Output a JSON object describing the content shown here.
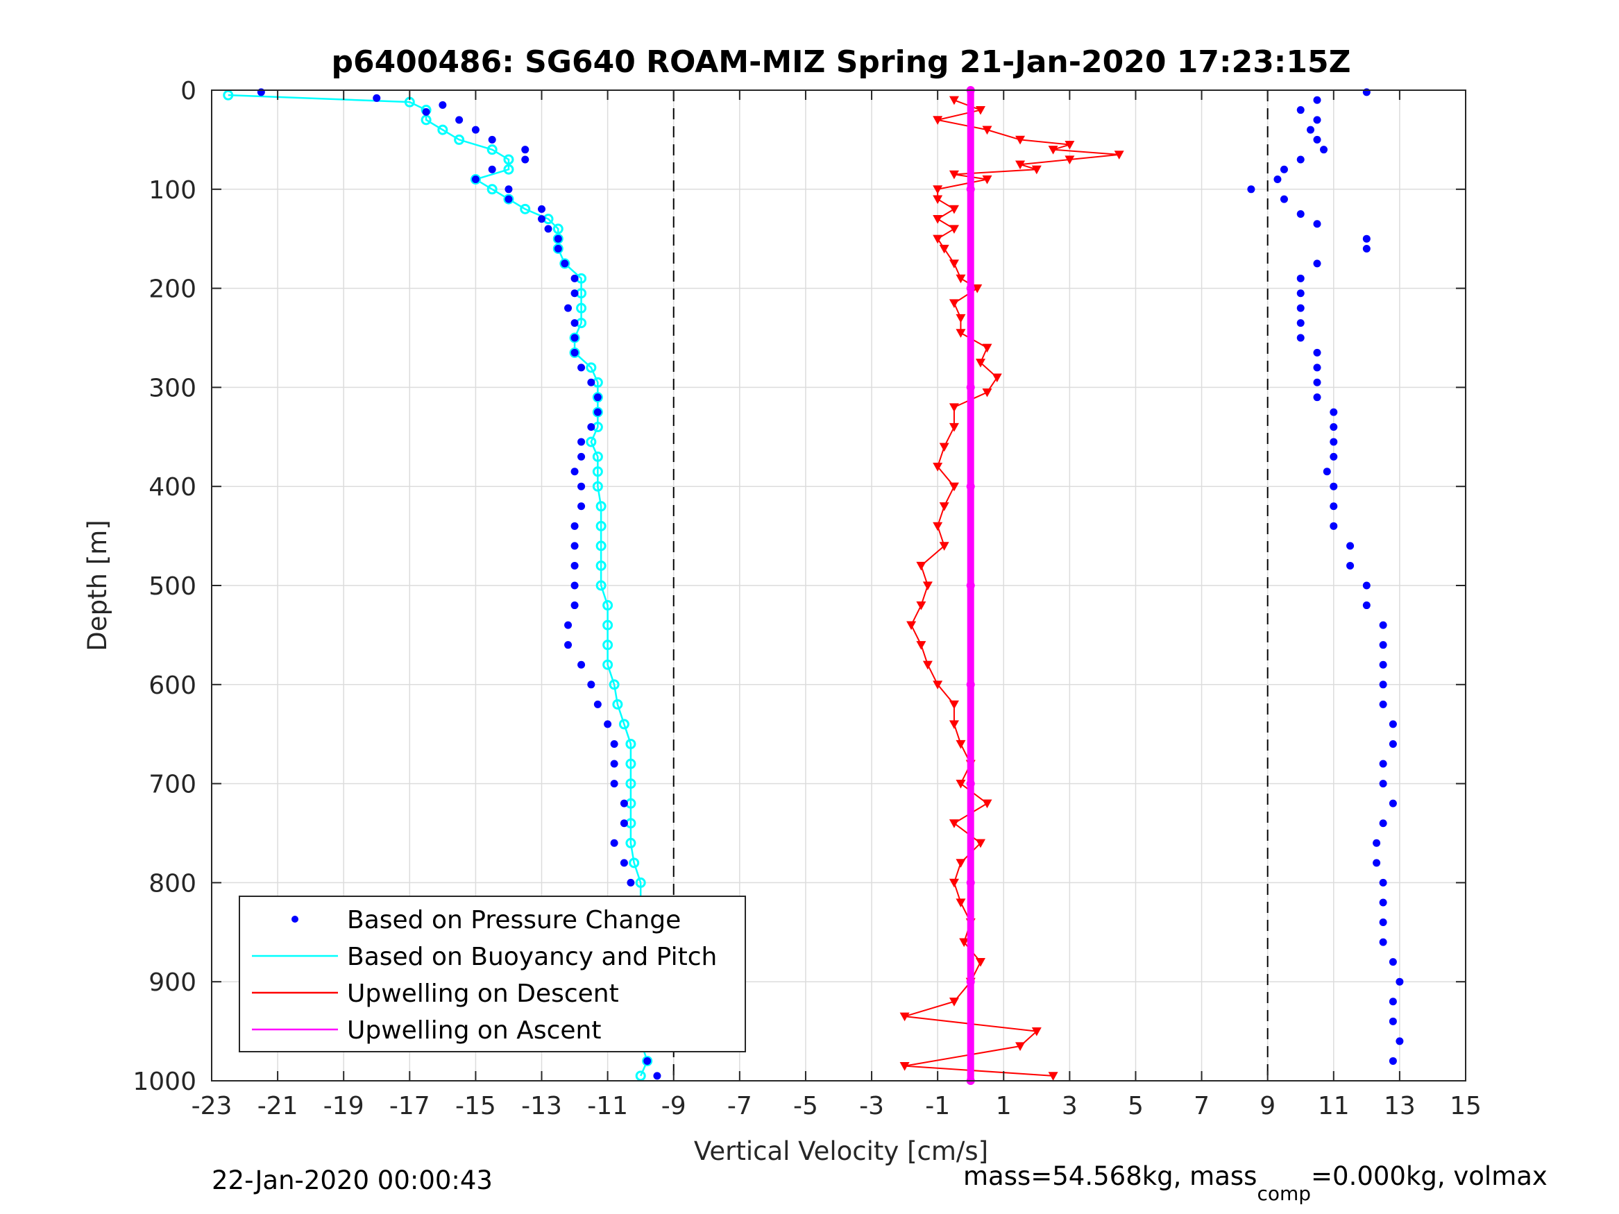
{
  "chart_data": {
    "type": "scatter",
    "title": "p6400486: SG640 ROAM-MIZ Spring 21-Jan-2020 17:23:15Z",
    "xlabel": "Vertical Velocity [cm/s]",
    "ylabel": "Depth [m]",
    "xlim": [
      -23,
      15
    ],
    "ylim": [
      0,
      1000
    ],
    "y_reversed": true,
    "grid": true,
    "x_ticks": [
      "-23",
      "-21",
      "-19",
      "-17",
      "-15",
      "-13",
      "-11",
      "-9",
      "-7",
      "-5",
      "-3",
      "-1",
      "1",
      "3",
      "5",
      "7",
      "9",
      "11",
      "13",
      "15"
    ],
    "y_ticks": [
      "0",
      "100",
      "200",
      "300",
      "400",
      "500",
      "600",
      "700",
      "800",
      "900",
      "1000"
    ],
    "threshold_lines_x": [
      -9,
      9
    ],
    "legend_position": "lower-left",
    "colors": {
      "pressure": "#0000ff",
      "buoyancy": "#00ffff",
      "upwelling_descent": "#ff0000",
      "upwelling_ascent": "#ff00ff"
    },
    "series": [
      {
        "name": "Based on Pressure Change",
        "style": "dot",
        "descent_depth": [
          2,
          8,
          15,
          22,
          30,
          40,
          50,
          60,
          70,
          80,
          90,
          100,
          110,
          120,
          130,
          140,
          150,
          160,
          175,
          190,
          205,
          220,
          235,
          250,
          265,
          280,
          295,
          310,
          325,
          340,
          355,
          370,
          385,
          400,
          420,
          440,
          460,
          480,
          500,
          520,
          540,
          560,
          580,
          600,
          620,
          640,
          660,
          680,
          700,
          720,
          740,
          760,
          780,
          800,
          820,
          840,
          860,
          880,
          900,
          920,
          940,
          960,
          980,
          995
        ],
        "descent_velocity": [
          -21.5,
          -18,
          -16,
          -16.5,
          -15.5,
          -15,
          -14.5,
          -13.5,
          -13.5,
          -14.5,
          -15,
          -14,
          -14,
          -13,
          -13,
          -12.8,
          -12.5,
          -12.5,
          -12.3,
          -12,
          -12,
          -12.2,
          -12,
          -12,
          -12,
          -11.8,
          -11.5,
          -11.3,
          -11.3,
          -11.5,
          -11.8,
          -11.8,
          -12,
          -11.8,
          -11.8,
          -12,
          -12,
          -12,
          -12,
          -12,
          -12.2,
          -12.2,
          -11.8,
          -11.5,
          -11.3,
          -11,
          -10.8,
          -10.8,
          -10.8,
          -10.5,
          -10.5,
          -10.8,
          -10.5,
          -10.3,
          -10.3,
          -10.1,
          -10,
          -10,
          -10,
          -10.1,
          -10,
          -10,
          -9.8,
          -9.5
        ],
        "ascent_depth": [
          2,
          10,
          20,
          30,
          40,
          50,
          60,
          70,
          80,
          90,
          100,
          110,
          125,
          135,
          150,
          160,
          175,
          190,
          205,
          220,
          235,
          250,
          265,
          280,
          295,
          310,
          325,
          340,
          355,
          370,
          385,
          400,
          420,
          440,
          460,
          480,
          500,
          520,
          540,
          560,
          580,
          600,
          620,
          640,
          660,
          680,
          700,
          720,
          740,
          760,
          780,
          800,
          820,
          840,
          860,
          880,
          900,
          920,
          940,
          960,
          980
        ],
        "ascent_velocity": [
          12,
          10.5,
          10,
          10.5,
          10.3,
          10.5,
          10.7,
          10,
          9.5,
          9.3,
          8.5,
          9.5,
          10,
          10.5,
          12,
          12,
          10.5,
          10,
          10,
          10,
          10,
          10,
          10.5,
          10.5,
          10.5,
          10.5,
          11,
          11,
          11,
          11,
          10.8,
          11,
          11,
          11,
          11.5,
          11.5,
          12,
          12,
          12.5,
          12.5,
          12.5,
          12.5,
          12.5,
          12.8,
          12.8,
          12.5,
          12.5,
          12.8,
          12.5,
          12.3,
          12.3,
          12.5,
          12.5,
          12.5,
          12.5,
          12.8,
          13,
          12.8,
          12.8,
          13,
          12.8
        ]
      },
      {
        "name": "Based on Buoyancy and Pitch",
        "style": "line-with-open-circles",
        "depth": [
          5,
          12,
          20,
          30,
          40,
          50,
          60,
          70,
          80,
          90,
          100,
          110,
          120,
          130,
          140,
          150,
          160,
          175,
          190,
          205,
          220,
          235,
          250,
          265,
          280,
          295,
          310,
          325,
          340,
          355,
          370,
          385,
          400,
          420,
          440,
          460,
          480,
          500,
          520,
          540,
          560,
          580,
          600,
          620,
          640,
          660,
          680,
          700,
          720,
          740,
          760,
          780,
          800,
          820,
          840,
          860,
          880,
          900,
          920,
          940,
          960,
          980,
          995
        ],
        "velocity": [
          -22.5,
          -17,
          -16.5,
          -16.5,
          -16,
          -15.5,
          -14.5,
          -14,
          -14,
          -15,
          -14.5,
          -14,
          -13.5,
          -12.8,
          -12.5,
          -12.5,
          -12.5,
          -12.3,
          -11.8,
          -11.8,
          -11.8,
          -11.8,
          -12,
          -12,
          -11.5,
          -11.3,
          -11.3,
          -11.3,
          -11.3,
          -11.5,
          -11.3,
          -11.3,
          -11.3,
          -11.2,
          -11.2,
          -11.2,
          -11.2,
          -11.2,
          -11,
          -11,
          -11,
          -11,
          -10.8,
          -10.7,
          -10.5,
          -10.3,
          -10.3,
          -10.3,
          -10.3,
          -10.3,
          -10.3,
          -10.2,
          -10,
          -10,
          -9.8,
          -9.8,
          -9.8,
          -9.8,
          -9.8,
          -10,
          -10,
          -9.8,
          -10
        ]
      },
      {
        "name": "Upwelling on Descent",
        "style": "line-with-down-triangles",
        "depth": [
          10,
          20,
          30,
          40,
          50,
          55,
          60,
          65,
          70,
          75,
          80,
          85,
          90,
          100,
          110,
          120,
          130,
          140,
          150,
          160,
          175,
          190,
          200,
          215,
          230,
          245,
          260,
          275,
          290,
          305,
          320,
          340,
          360,
          380,
          400,
          420,
          440,
          460,
          480,
          500,
          520,
          540,
          560,
          580,
          600,
          620,
          640,
          660,
          680,
          700,
          720,
          740,
          760,
          780,
          800,
          820,
          840,
          860,
          880,
          900,
          920,
          935,
          950,
          965,
          985,
          995
        ],
        "velocity": [
          -0.5,
          0.3,
          -1,
          0.5,
          1.5,
          3,
          2.5,
          4.5,
          3,
          1.5,
          2,
          -0.5,
          0.5,
          -1,
          -1,
          -0.5,
          -1,
          -0.5,
          -1,
          -0.8,
          -0.5,
          -0.3,
          0.2,
          -0.5,
          -0.3,
          -0.3,
          0.5,
          0.3,
          0.8,
          0.5,
          -0.5,
          -0.5,
          -0.8,
          -1,
          -0.5,
          -0.8,
          -1,
          -0.8,
          -1.5,
          -1.3,
          -1.5,
          -1.8,
          -1.5,
          -1.3,
          -1,
          -0.5,
          -0.5,
          -0.3,
          0,
          -0.3,
          0.5,
          -0.5,
          0.3,
          -0.3,
          -0.5,
          -0.3,
          0,
          -0.2,
          0.3,
          0,
          -0.5,
          -2,
          2,
          1.5,
          -2,
          2.5
        ]
      },
      {
        "name": "Upwelling on Ascent",
        "style": "line-with-dots",
        "depth": [
          0,
          100,
          200,
          300,
          400,
          500,
          600,
          700,
          800,
          900,
          1000
        ],
        "velocity": [
          0,
          0,
          0,
          0,
          0,
          0,
          0,
          0,
          0,
          0,
          0
        ]
      }
    ],
    "annotations": {
      "footer_left": "22-Jan-2020 00:00:43",
      "footer_right_main": "mass=54.568kg, mass",
      "footer_right_sub": "comp",
      "footer_right_rest": "=0.000kg, volmax"
    }
  }
}
